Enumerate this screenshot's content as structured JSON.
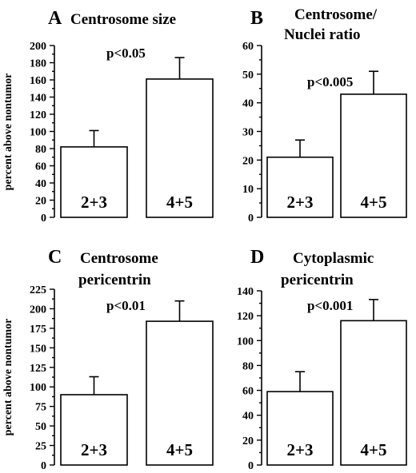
{
  "chart_data": [
    {
      "type": "bar",
      "letter": "A",
      "title": [
        "Centrosome size"
      ],
      "ylabel": "percent above nontumor",
      "categories": [
        "2+3",
        "4+5"
      ],
      "values": [
        82,
        161
      ],
      "errors": [
        19,
        25
      ],
      "ylim": [
        0,
        200
      ],
      "yticks": [
        0,
        20,
        40,
        60,
        80,
        100,
        120,
        140,
        160,
        180,
        200
      ],
      "annotation": "p<0.05"
    },
    {
      "type": "bar",
      "letter": "B",
      "title": [
        "Centrosome/",
        "Nuclei ratio"
      ],
      "ylabel": "",
      "categories": [
        "2+3",
        "4+5"
      ],
      "values": [
        21,
        43
      ],
      "errors": [
        6,
        8
      ],
      "ylim": [
        0,
        60
      ],
      "yticks": [
        0,
        10,
        20,
        30,
        40,
        50,
        60
      ],
      "annotation": "p<0.005"
    },
    {
      "type": "bar",
      "letter": "C",
      "title": [
        "Centrosome",
        "pericentrin"
      ],
      "ylabel": "percent above nontumor",
      "categories": [
        "2+3",
        "4+5"
      ],
      "values": [
        90,
        184
      ],
      "errors": [
        23,
        26
      ],
      "ylim": [
        0,
        225
      ],
      "yticks": [
        0,
        25,
        50,
        75,
        100,
        125,
        150,
        175,
        200,
        225
      ],
      "annotation": "p<0.01"
    },
    {
      "type": "bar",
      "letter": "D",
      "title": [
        "Cytoplasmic",
        "pericentrin"
      ],
      "ylabel": "",
      "categories": [
        "2+3",
        "4+5"
      ],
      "values": [
        59,
        116
      ],
      "errors": [
        16,
        17
      ],
      "ylim": [
        0,
        140
      ],
      "yticks": [
        0,
        20,
        40,
        60,
        80,
        100,
        120,
        140
      ],
      "annotation": "p<0.001"
    }
  ]
}
